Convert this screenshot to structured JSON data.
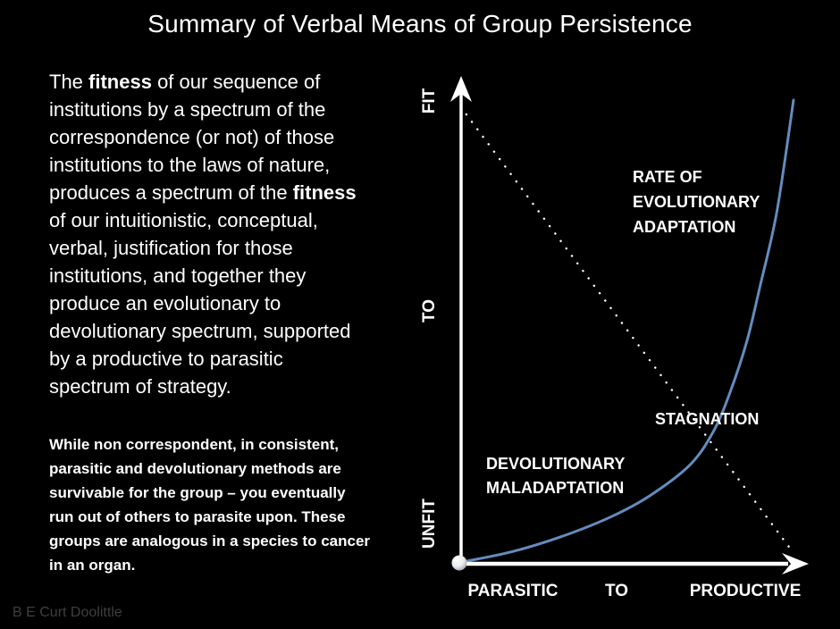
{
  "title": "Summary of Verbal Means of Group Persistence",
  "credit": "B E Curt Doolittle",
  "colors": {
    "background": "#000000",
    "text": "#ffffff",
    "curve": "#648bbd",
    "dotted_line": "#ffffff",
    "axis": "#ffffff",
    "credit_text": "#3f3f3f"
  },
  "intro": {
    "segments": [
      {
        "t": "The ",
        "b": false
      },
      {
        "t": "fitness",
        "b": true
      },
      {
        "t": " of our sequence of\ninstitutions by a spectrum of the\ncorrespondence (or not) of those\ninstitutions to the laws of nature,\nproduces a spectrum of the ",
        "b": false
      },
      {
        "t": "fitness",
        "b": true
      },
      {
        "t": "\nof our intuitionistic, conceptual,\nverbal, justification for those\ninstitutions, and together they\nproduce an evolutionary to\ndevolutionary spectrum, supported\nby a productive to parasitic\nspectrum of strategy.",
        "b": false
      }
    ]
  },
  "note": "While non correspondent, in consistent,\nparasitic and devolutionary methods are\nsurvivable for the group – you eventually\nrun out of others to parasite upon. These\ngroups are analogous in a species to cancer\nin an organ.",
  "chart_data": {
    "type": "line",
    "title": "",
    "description": "Conceptual slide chart: exponential blue curve (rate of evolutionary adaptation) rising from unfit/parasitic origin to fit/productive top-right, crossed by a dotted white diagonal reference line descending from top-left to bottom-right; their crossing is labeled STAGNATION.",
    "x_axis": {
      "labels": [
        "PARASITIC",
        "TO",
        "PRODUCTIVE"
      ],
      "arrow": true,
      "range_normalized": [
        0,
        1
      ]
    },
    "y_axis": {
      "labels": [
        "FIT",
        "TO",
        "UNFIT"
      ],
      "arrow": true,
      "range_normalized": [
        0,
        1
      ]
    },
    "grid": false,
    "legend": "none",
    "annotations": {
      "rate": "RATE OF\nEVOLUTIONARY\nADAPTATION",
      "stagnation": "STAGNATION",
      "devolutionary": "DEVOLUTIONARY\nMALADAPTATION"
    },
    "series": [
      {
        "name": "rate-of-evolutionary-adaptation",
        "style": "solid",
        "color": "#648bbd",
        "model": "exponential",
        "points_normalized": [
          [
            0,
            0
          ],
          [
            0.15,
            0.022
          ],
          [
            0.3,
            0.055
          ],
          [
            0.45,
            0.098
          ],
          [
            0.57,
            0.145
          ],
          [
            0.69,
            0.212
          ],
          [
            0.76,
            0.285
          ],
          [
            0.81,
            0.37
          ],
          [
            0.86,
            0.48
          ],
          [
            0.9,
            0.6
          ],
          [
            0.95,
            0.76
          ],
          [
            1,
            1
          ]
        ]
      },
      {
        "name": "diagonal-reference",
        "style": "dotted",
        "color": "#ffffff",
        "points_normalized": [
          [
            0.013,
            0.969
          ],
          [
            0.99,
            0.029
          ]
        ]
      }
    ]
  }
}
